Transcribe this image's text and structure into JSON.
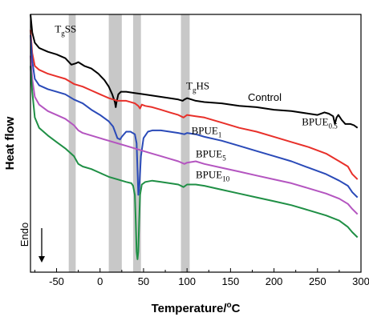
{
  "chart_data": {
    "type": "line",
    "xlabel": "Temperature/",
    "xlabel_unit_sup": "o",
    "xlabel_unit": "C",
    "ylabel": "Heat flow",
    "endo_label": "Endo",
    "xlim": [
      -80,
      300
    ],
    "x_ticks": [
      -50,
      0,
      50,
      100,
      150,
      200,
      250,
      300
    ],
    "x_tick_labels": [
      "-50",
      "0",
      "50",
      "100",
      "150",
      "200",
      "250",
      "300"
    ],
    "y_ticks_shown": false,
    "legend": "none",
    "highlight_bands": [
      [
        -36,
        -28
      ],
      [
        10,
        25
      ],
      [
        38,
        47
      ],
      [
        93,
        103
      ]
    ],
    "band_color": "#c8c8c8",
    "annotations": [
      {
        "text": "T",
        "sub": "g",
        "after": "SS",
        "x": -52,
        "y": 0.93
      },
      {
        "text": "T",
        "sub": "g",
        "after": "HS",
        "x": 99,
        "y": 0.71
      }
    ],
    "series": [
      {
        "name": "Control",
        "label_parts": [
          "Control",
          ""
        ],
        "color": "#000000",
        "label_x": 170,
        "label_y": 0.665,
        "points": [
          [
            -80,
            1.0
          ],
          [
            -78,
            0.93
          ],
          [
            -75,
            0.89
          ],
          [
            -70,
            0.87
          ],
          [
            -60,
            0.855
          ],
          [
            -50,
            0.845
          ],
          [
            -40,
            0.83
          ],
          [
            -33,
            0.805
          ],
          [
            -28,
            0.81
          ],
          [
            -25,
            0.815
          ],
          [
            -18,
            0.8
          ],
          [
            -10,
            0.79
          ],
          [
            -2,
            0.77
          ],
          [
            5,
            0.745
          ],
          [
            10,
            0.72
          ],
          [
            14,
            0.69
          ],
          [
            17,
            0.66
          ],
          [
            18,
            0.64
          ],
          [
            19,
            0.66
          ],
          [
            21,
            0.69
          ],
          [
            24,
            0.7
          ],
          [
            30,
            0.7
          ],
          [
            40,
            0.695
          ],
          [
            50,
            0.69
          ],
          [
            60,
            0.685
          ],
          [
            70,
            0.68
          ],
          [
            80,
            0.675
          ],
          [
            90,
            0.67
          ],
          [
            95,
            0.665
          ],
          [
            97,
            0.67
          ],
          [
            100,
            0.675
          ],
          [
            110,
            0.665
          ],
          [
            120,
            0.66
          ],
          [
            140,
            0.655
          ],
          [
            160,
            0.645
          ],
          [
            180,
            0.64
          ],
          [
            200,
            0.63
          ],
          [
            220,
            0.625
          ],
          [
            240,
            0.615
          ],
          [
            250,
            0.61
          ],
          [
            258,
            0.62
          ],
          [
            263,
            0.615
          ],
          [
            268,
            0.605
          ],
          [
            270,
            0.575
          ],
          [
            272,
            0.6
          ],
          [
            274,
            0.61
          ],
          [
            278,
            0.59
          ],
          [
            282,
            0.575
          ],
          [
            288,
            0.575
          ],
          [
            292,
            0.57
          ],
          [
            296,
            0.56
          ]
        ]
      },
      {
        "name": "BPUE0.5",
        "label_parts": [
          "BPUE",
          "0.5"
        ],
        "color": "#e8302a",
        "label_x": 232,
        "label_y": 0.57,
        "points": [
          [
            -80,
            0.94
          ],
          [
            -78,
            0.85
          ],
          [
            -75,
            0.8
          ],
          [
            -70,
            0.785
          ],
          [
            -60,
            0.77
          ],
          [
            -50,
            0.76
          ],
          [
            -40,
            0.75
          ],
          [
            -30,
            0.73
          ],
          [
            -20,
            0.72
          ],
          [
            -10,
            0.705
          ],
          [
            0,
            0.69
          ],
          [
            10,
            0.675
          ],
          [
            20,
            0.665
          ],
          [
            25,
            0.665
          ],
          [
            30,
            0.665
          ],
          [
            40,
            0.655
          ],
          [
            44,
            0.645
          ],
          [
            46,
            0.635
          ],
          [
            48,
            0.65
          ],
          [
            52,
            0.645
          ],
          [
            60,
            0.64
          ],
          [
            70,
            0.63
          ],
          [
            80,
            0.62
          ],
          [
            90,
            0.61
          ],
          [
            96,
            0.6
          ],
          [
            100,
            0.61
          ],
          [
            110,
            0.605
          ],
          [
            120,
            0.6
          ],
          [
            140,
            0.58
          ],
          [
            160,
            0.56
          ],
          [
            180,
            0.545
          ],
          [
            200,
            0.525
          ],
          [
            220,
            0.505
          ],
          [
            240,
            0.485
          ],
          [
            260,
            0.46
          ],
          [
            275,
            0.43
          ],
          [
            285,
            0.41
          ],
          [
            290,
            0.38
          ],
          [
            296,
            0.36
          ]
        ]
      },
      {
        "name": "BPUE1",
        "label_parts": [
          "BPUE",
          "1"
        ],
        "color": "#2a4ab8",
        "label_x": 105,
        "label_y": 0.535,
        "points": [
          [
            -80,
            0.92
          ],
          [
            -78,
            0.82
          ],
          [
            -75,
            0.75
          ],
          [
            -70,
            0.725
          ],
          [
            -60,
            0.71
          ],
          [
            -50,
            0.7
          ],
          [
            -40,
            0.69
          ],
          [
            -30,
            0.67
          ],
          [
            -20,
            0.655
          ],
          [
            -10,
            0.63
          ],
          [
            0,
            0.61
          ],
          [
            10,
            0.585
          ],
          [
            15,
            0.565
          ],
          [
            20,
            0.52
          ],
          [
            23,
            0.515
          ],
          [
            25,
            0.525
          ],
          [
            30,
            0.545
          ],
          [
            35,
            0.545
          ],
          [
            40,
            0.535
          ],
          [
            42,
            0.5
          ],
          [
            43,
            0.4
          ],
          [
            44,
            0.3
          ],
          [
            45,
            0.32
          ],
          [
            47,
            0.45
          ],
          [
            50,
            0.52
          ],
          [
            55,
            0.545
          ],
          [
            60,
            0.55
          ],
          [
            70,
            0.55
          ],
          [
            80,
            0.545
          ],
          [
            90,
            0.54
          ],
          [
            97,
            0.535
          ],
          [
            100,
            0.54
          ],
          [
            110,
            0.535
          ],
          [
            120,
            0.525
          ],
          [
            140,
            0.51
          ],
          [
            160,
            0.49
          ],
          [
            180,
            0.47
          ],
          [
            200,
            0.45
          ],
          [
            220,
            0.43
          ],
          [
            240,
            0.405
          ],
          [
            260,
            0.38
          ],
          [
            275,
            0.355
          ],
          [
            285,
            0.335
          ],
          [
            290,
            0.31
          ],
          [
            296,
            0.29
          ]
        ]
      },
      {
        "name": "BPUE5",
        "label_parts": [
          "BPUE",
          "5"
        ],
        "color": "#b455c0",
        "label_x": 110,
        "label_y": 0.445,
        "points": [
          [
            -80,
            0.84
          ],
          [
            -78,
            0.75
          ],
          [
            -75,
            0.68
          ],
          [
            -70,
            0.65
          ],
          [
            -60,
            0.625
          ],
          [
            -50,
            0.61
          ],
          [
            -40,
            0.595
          ],
          [
            -30,
            0.57
          ],
          [
            -25,
            0.55
          ],
          [
            -20,
            0.54
          ],
          [
            -10,
            0.53
          ],
          [
            0,
            0.52
          ],
          [
            10,
            0.51
          ],
          [
            20,
            0.5
          ],
          [
            30,
            0.49
          ],
          [
            40,
            0.48
          ],
          [
            50,
            0.47
          ],
          [
            60,
            0.46
          ],
          [
            70,
            0.45
          ],
          [
            80,
            0.44
          ],
          [
            90,
            0.43
          ],
          [
            97,
            0.42
          ],
          [
            100,
            0.425
          ],
          [
            110,
            0.43
          ],
          [
            120,
            0.42
          ],
          [
            140,
            0.405
          ],
          [
            160,
            0.39
          ],
          [
            180,
            0.375
          ],
          [
            200,
            0.36
          ],
          [
            220,
            0.345
          ],
          [
            240,
            0.325
          ],
          [
            260,
            0.305
          ],
          [
            275,
            0.285
          ],
          [
            285,
            0.265
          ],
          [
            290,
            0.245
          ],
          [
            296,
            0.225
          ]
        ]
      },
      {
        "name": "BPUE10",
        "label_parts": [
          "BPUE",
          "10"
        ],
        "color": "#1f8f45",
        "label_x": 110,
        "label_y": 0.365,
        "points": [
          [
            -80,
            0.8
          ],
          [
            -78,
            0.7
          ],
          [
            -75,
            0.6
          ],
          [
            -70,
            0.56
          ],
          [
            -60,
            0.53
          ],
          [
            -50,
            0.505
          ],
          [
            -40,
            0.48
          ],
          [
            -30,
            0.45
          ],
          [
            -25,
            0.42
          ],
          [
            -20,
            0.41
          ],
          [
            -10,
            0.4
          ],
          [
            0,
            0.385
          ],
          [
            10,
            0.37
          ],
          [
            20,
            0.36
          ],
          [
            30,
            0.35
          ],
          [
            36,
            0.345
          ],
          [
            38,
            0.335
          ],
          [
            40,
            0.3
          ],
          [
            41,
            0.2
          ],
          [
            42,
            0.08
          ],
          [
            43,
            0.05
          ],
          [
            44,
            0.08
          ],
          [
            45,
            0.2
          ],
          [
            46,
            0.3
          ],
          [
            48,
            0.34
          ],
          [
            52,
            0.35
          ],
          [
            60,
            0.355
          ],
          [
            70,
            0.35
          ],
          [
            80,
            0.345
          ],
          [
            90,
            0.34
          ],
          [
            96,
            0.33
          ],
          [
            100,
            0.34
          ],
          [
            110,
            0.34
          ],
          [
            120,
            0.335
          ],
          [
            140,
            0.32
          ],
          [
            160,
            0.305
          ],
          [
            180,
            0.29
          ],
          [
            200,
            0.275
          ],
          [
            220,
            0.26
          ],
          [
            240,
            0.24
          ],
          [
            260,
            0.22
          ],
          [
            275,
            0.2
          ],
          [
            285,
            0.175
          ],
          [
            290,
            0.155
          ],
          [
            296,
            0.135
          ]
        ]
      }
    ]
  }
}
